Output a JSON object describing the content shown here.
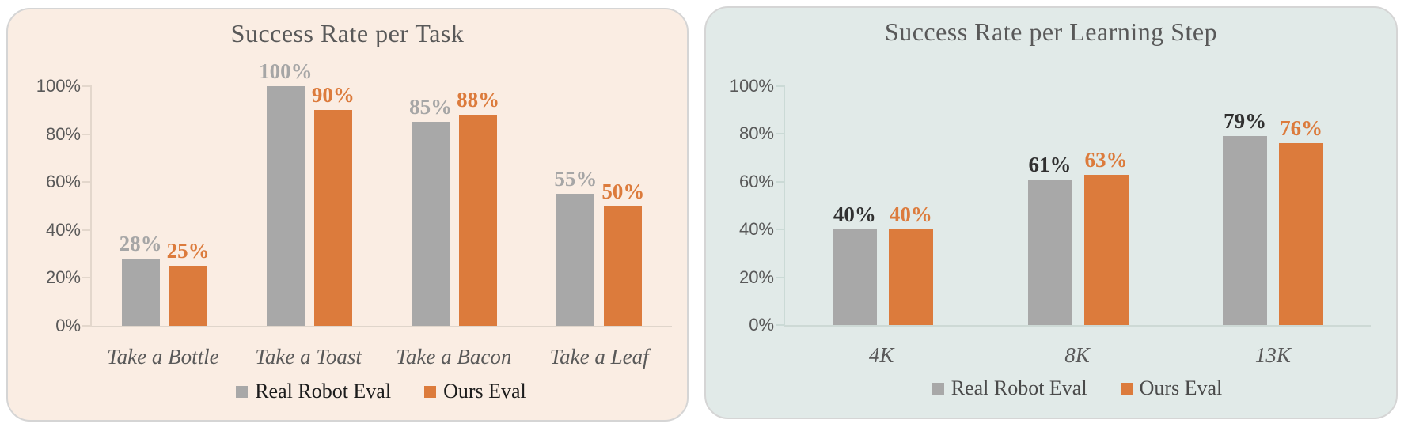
{
  "chart_data": [
    {
      "type": "bar",
      "title": "Success Rate per Task",
      "categories": [
        "Take a Bottle",
        "Take a Toast",
        "Take a Bacon",
        "Take a Leaf"
      ],
      "series": [
        {
          "name": "Real Robot Eval",
          "values": [
            28,
            100,
            85,
            55
          ],
          "color": "#A8A8A8",
          "value_label_color": "#A6A6A6"
        },
        {
          "name": "Ours Eval",
          "values": [
            25,
            90,
            88,
            50
          ],
          "color": "#DC7B3C",
          "value_label_color": "#DC7B3C"
        }
      ],
      "value_label_format": "{v}%",
      "y_axis": {
        "min": 0,
        "max": 100,
        "ticks": [
          "0%",
          "20%",
          "40%",
          "60%",
          "80%",
          "100%"
        ]
      },
      "grid": false,
      "legend_position": "bottom",
      "style": {
        "panel_bg": "#FAEDE3",
        "axis_color": "#E3D7CC",
        "baseline_color": "#DFD5CB",
        "text_color": "#595959",
        "legend_text_color": "#1C1C1C"
      }
    },
    {
      "type": "bar",
      "title": "Success Rate per Learning Step",
      "categories": [
        "4K",
        "8K",
        "13K"
      ],
      "series": [
        {
          "name": "Real Robot Eval",
          "values": [
            40,
            61,
            79
          ],
          "color": "#A8A8A8",
          "value_label_color": "#303030"
        },
        {
          "name": "Ours Eval",
          "values": [
            40,
            63,
            76
          ],
          "color": "#DC7B3C",
          "value_label_color": "#DC7B3C"
        }
      ],
      "value_label_format": "{v}%",
      "y_axis": {
        "min": 0,
        "max": 100,
        "ticks": [
          "0%",
          "20%",
          "40%",
          "60%",
          "80%",
          "100%"
        ]
      },
      "grid": false,
      "legend_position": "bottom",
      "style": {
        "panel_bg": "#E1EAE8",
        "axis_color": "#CBDAD6",
        "baseline_color": "#CDD9D5",
        "text_color": "#595959",
        "legend_text_color": "#4A4A4A"
      }
    }
  ]
}
